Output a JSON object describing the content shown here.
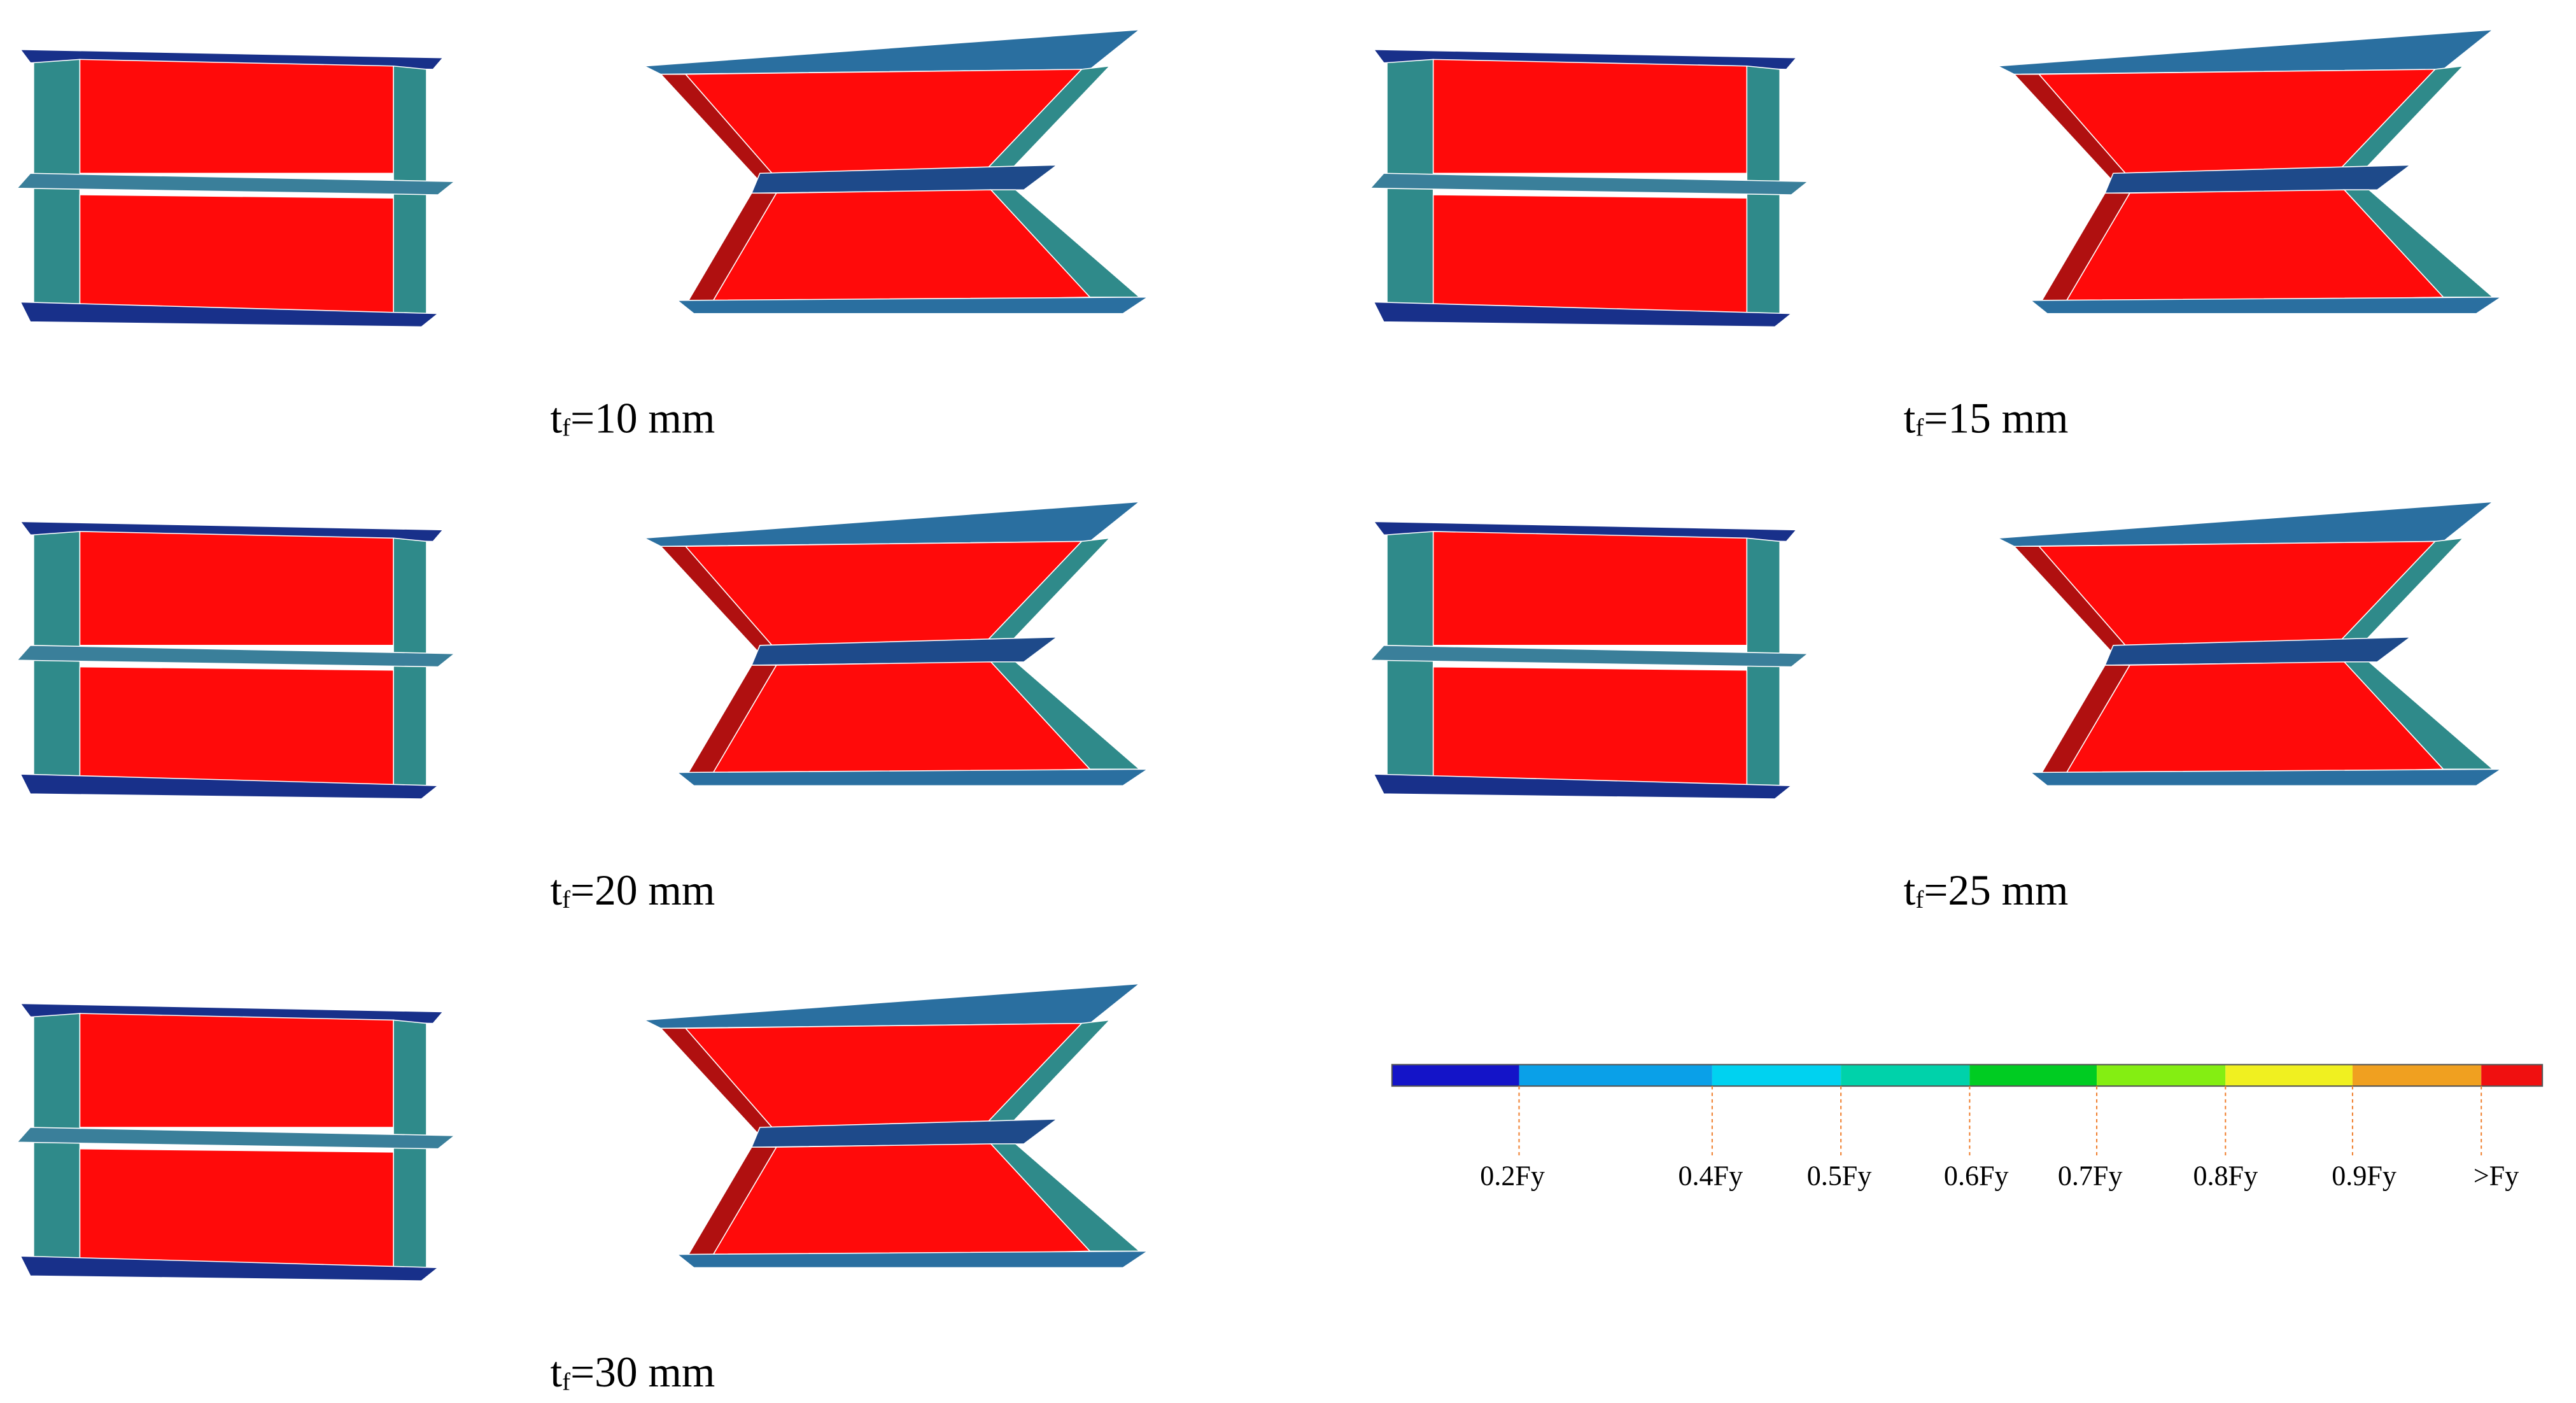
{
  "panels": [
    {
      "label": {
        "symbol": "t",
        "subscript": "f",
        "value": "=10 mm"
      }
    },
    {
      "label": {
        "symbol": "t",
        "subscript": "f",
        "value": "=15 mm"
      }
    },
    {
      "label": {
        "symbol": "t",
        "subscript": "f",
        "value": "=20 mm"
      }
    },
    {
      "label": {
        "symbol": "t",
        "subscript": "f",
        "value": "=25 mm"
      }
    },
    {
      "label": {
        "symbol": "t",
        "subscript": "f",
        "value": "=30 mm"
      }
    }
  ],
  "legend": {
    "colors": [
      "#1414c8",
      "#0aa0e8",
      "#00d2f0",
      "#00d2aa",
      "#00cc22",
      "#84ee12",
      "#f0f020",
      "#f0a020",
      "#f01010"
    ],
    "labels": [
      "0.2Fy",
      "0.4Fy",
      "0.5Fy",
      "0.6Fy",
      "0.7Fy",
      "0.8Fy",
      "0.9Fy",
      ">Fy"
    ]
  }
}
